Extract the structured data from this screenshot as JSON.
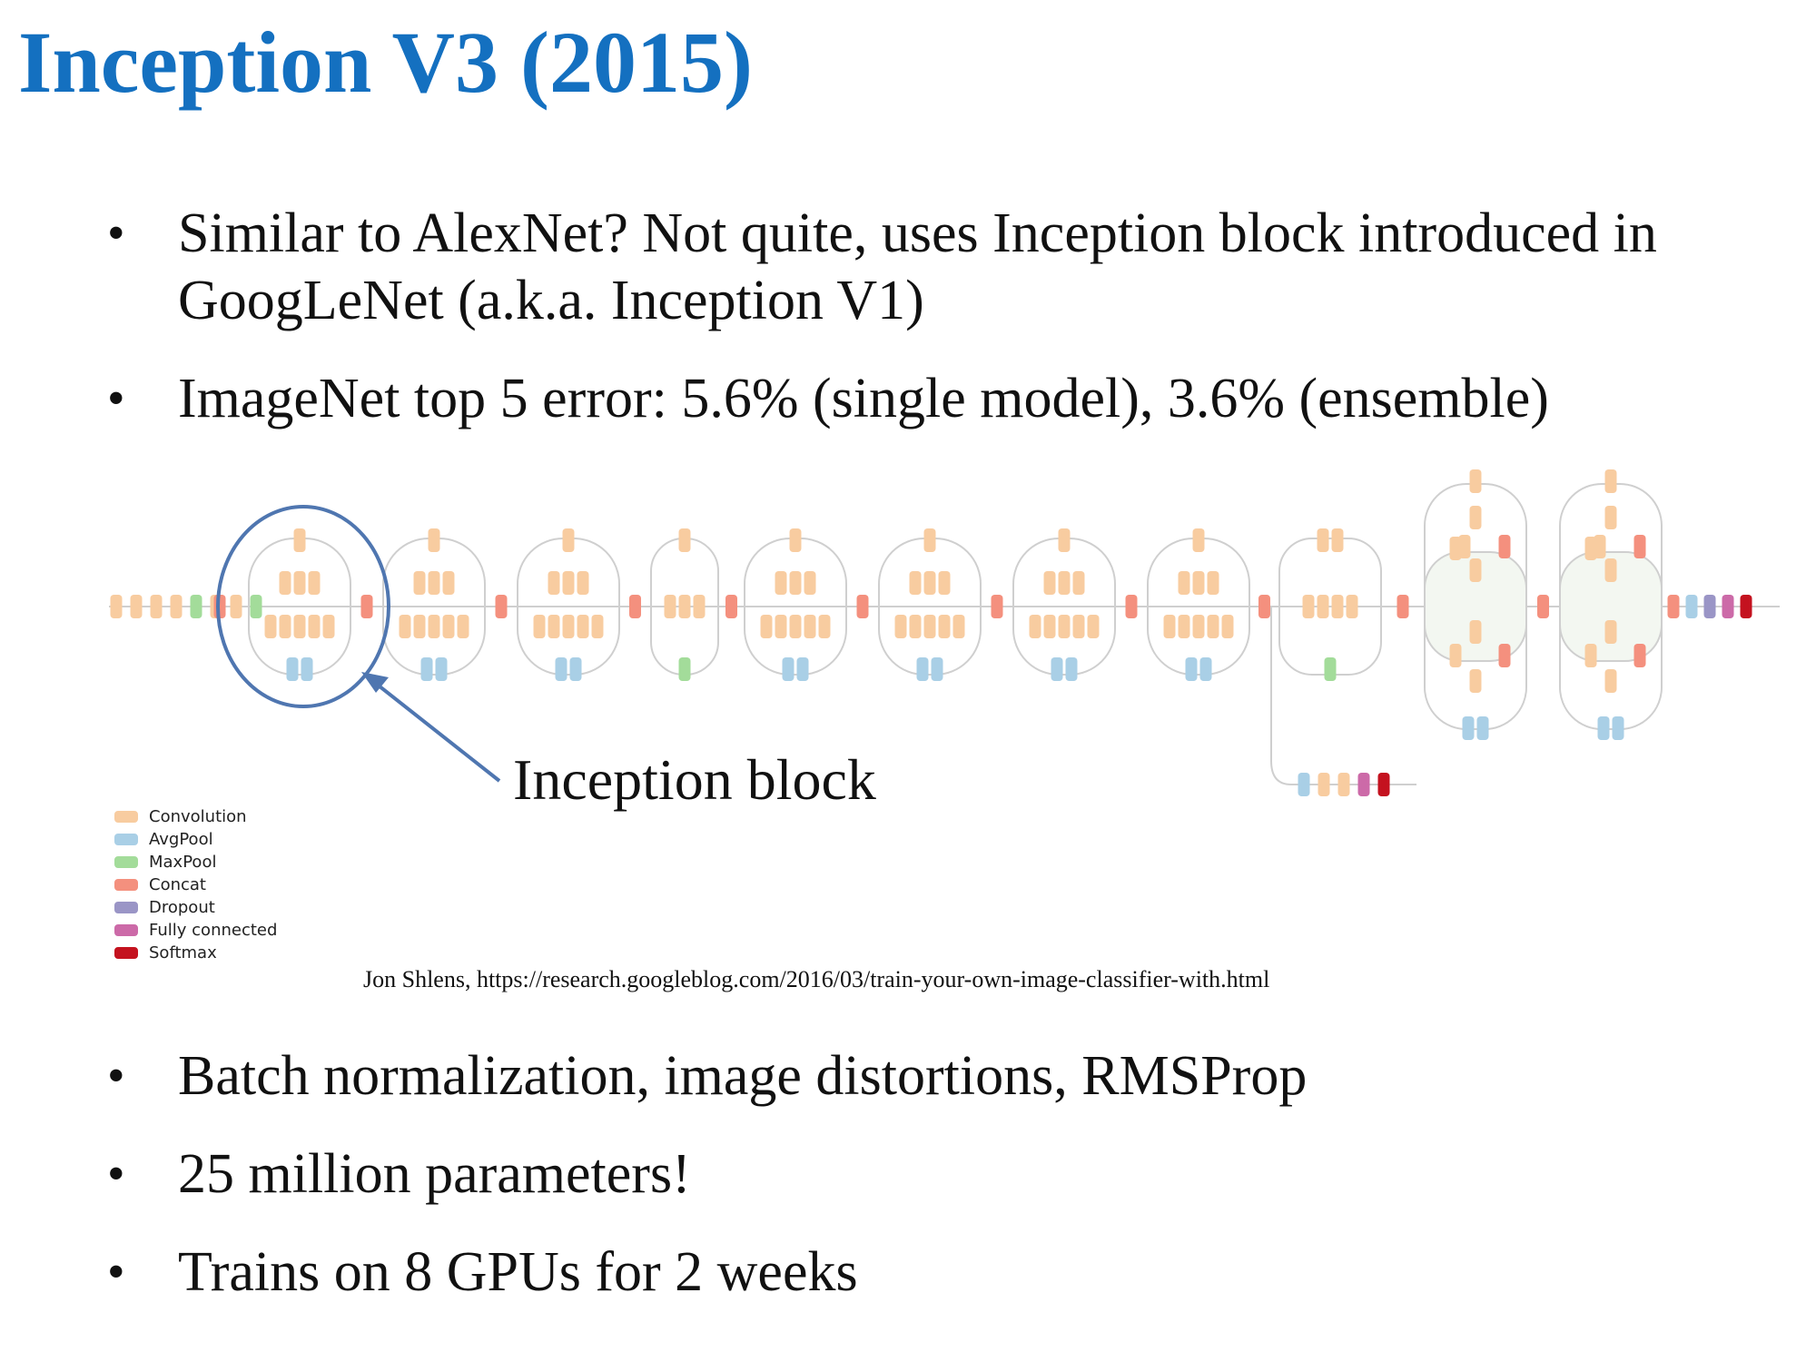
{
  "slide": {
    "title": "Inception V3 (2015)",
    "bullets_top": [
      "Similar to AlexNet? Not quite, uses Inception block introduced in GoogLeNet (a.k.a. Inception V1)",
      "ImageNet top 5 error: 5.6% (single model), 3.6% (ensemble)"
    ],
    "bullets_bottom": [
      "Batch normalization, image distortions, RMSProp",
      "25 million parameters!",
      "Trains on 8 GPUs for 2 weeks"
    ],
    "bullet_glyph": "•"
  },
  "figure": {
    "annotation": "Inception block",
    "credit": "Jon Shlens, https://research.googleblog.com/2016/03/train-your-own-image-classifier-with.html",
    "legend": [
      {
        "label": "Convolution",
        "color": "#f8cca0",
        "key": "conv"
      },
      {
        "label": "AvgPool",
        "color": "#a9cfe6",
        "key": "avg"
      },
      {
        "label": "MaxPool",
        "color": "#a3dc9a",
        "key": "max"
      },
      {
        "label": "Concat",
        "color": "#f4907e",
        "key": "concat"
      },
      {
        "label": "Dropout",
        "color": "#9a95c6",
        "key": "drop"
      },
      {
        "label": "Fully connected",
        "color": "#cc6aa8",
        "key": "fc"
      },
      {
        "label": "Softmax",
        "color": "#c4121f",
        "key": "soft"
      }
    ],
    "highlight_color": "#4f76b0",
    "network": {
      "stem": [
        "conv",
        "conv",
        "conv",
        "conv",
        "max",
        "conv",
        "conv",
        "max"
      ],
      "modules": [
        {
          "kind": "A",
          "pool": "avg"
        },
        {
          "kind": "A",
          "pool": "avg"
        },
        {
          "kind": "A",
          "pool": "avg"
        },
        {
          "kind": "R",
          "pool": "max"
        },
        {
          "kind": "A",
          "pool": "avg"
        },
        {
          "kind": "A",
          "pool": "avg"
        },
        {
          "kind": "A",
          "pool": "avg"
        },
        {
          "kind": "A",
          "pool": "avg"
        },
        {
          "kind": "R",
          "pool": "max"
        },
        {
          "kind": "C",
          "pool": "avg"
        },
        {
          "kind": "C",
          "pool": "avg"
        }
      ],
      "head": [
        "concat",
        "avg",
        "drop",
        "fc",
        "soft"
      ],
      "aux_head": [
        "avg",
        "conv",
        "conv",
        "fc",
        "soft"
      ]
    }
  }
}
